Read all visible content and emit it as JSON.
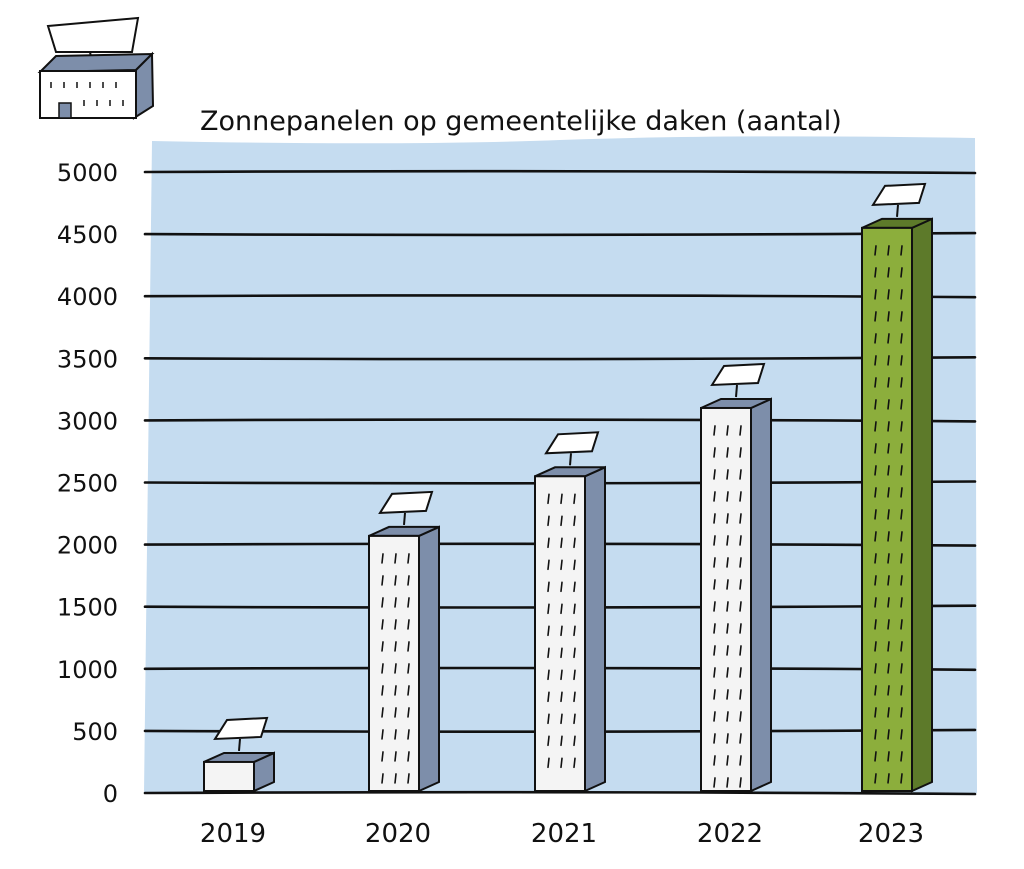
{
  "chart_data": {
    "type": "bar",
    "title": "Zonnepanelen op gemeentelijke daken (aantal)",
    "categories": [
      "2019",
      "2020",
      "2021",
      "2022",
      "2023"
    ],
    "values": [
      250,
      2070,
      2550,
      3100,
      4550
    ],
    "ylim": [
      0,
      5000
    ],
    "yticks": [
      "0",
      "500",
      "1000",
      "1500",
      "2000",
      "2500",
      "3000",
      "3500",
      "4000",
      "4500",
      "5000"
    ],
    "grid": true,
    "colors": {
      "plot_background": "#c5dcf0",
      "bar_face": "#f4f4f4",
      "bar_side": "#7d8eaa",
      "highlight_face": "#8cae3c",
      "highlight_side": "#5d7a2a",
      "panel": "#ffffff",
      "line": "#111111"
    },
    "highlight_category": "2023",
    "icons": [
      "building-with-solar-panel-icon"
    ]
  }
}
